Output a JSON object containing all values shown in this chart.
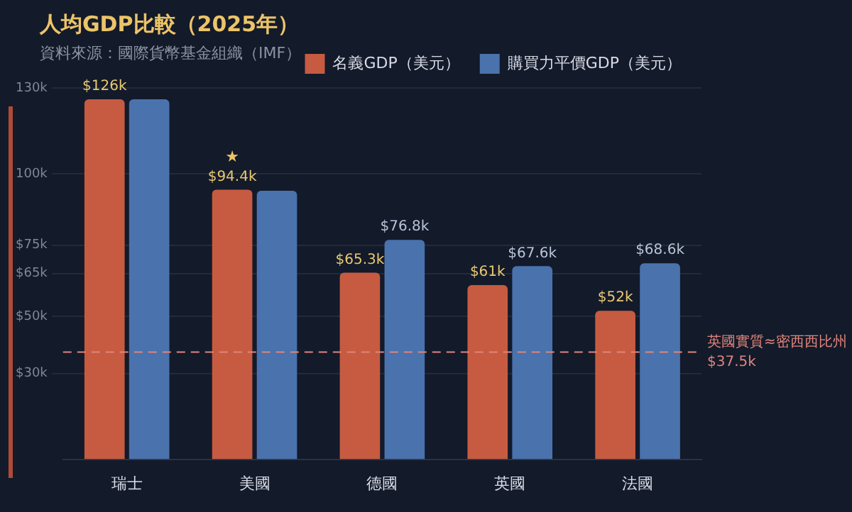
{
  "chart_data": {
    "type": "bar",
    "title": "人均GDP比較（2025年）",
    "subtitle": "資料來源：國際貨幣基金組織（IMF）",
    "categories": [
      "瑞士",
      "美國",
      "德國",
      "英國",
      "法國"
    ],
    "series": [
      {
        "name": "名義GDP（美元）",
        "color": "#c65b41",
        "values": [
          126,
          94.4,
          65.3,
          61,
          52
        ],
        "value_labels": [
          "$126k",
          "$94.4k",
          "$65.3k",
          "$61k",
          "$52k"
        ]
      },
      {
        "name": "購買力平價GDP（美元）",
        "color": "#4a72ad",
        "values": [
          126,
          94,
          76.8,
          67.6,
          68.6
        ],
        "value_labels": [
          null,
          null,
          "$76.8k",
          "$67.6k",
          "$68.6k"
        ]
      }
    ],
    "ylim": [
      0,
      130
    ],
    "yticks": [
      {
        "value": 30,
        "label": "$30k"
      },
      {
        "value": 50,
        "label": "$50k"
      },
      {
        "value": 65,
        "label": "$65k"
      },
      {
        "value": 75,
        "label": "$75k"
      },
      {
        "value": 100,
        "label": "100k"
      },
      {
        "value": 130,
        "label": "130k"
      }
    ],
    "annotations": [
      {
        "text": "★",
        "x": "美國",
        "y": 94.4
      }
    ],
    "grid": "y",
    "legend": "top right",
    "ref_lines": [
      {
        "axis": "y",
        "value": 37.5,
        "label": "英國實質≈密西西比州\n$37.5k",
        "color": "#e0857a",
        "line_style": "dashed"
      }
    ]
  }
}
